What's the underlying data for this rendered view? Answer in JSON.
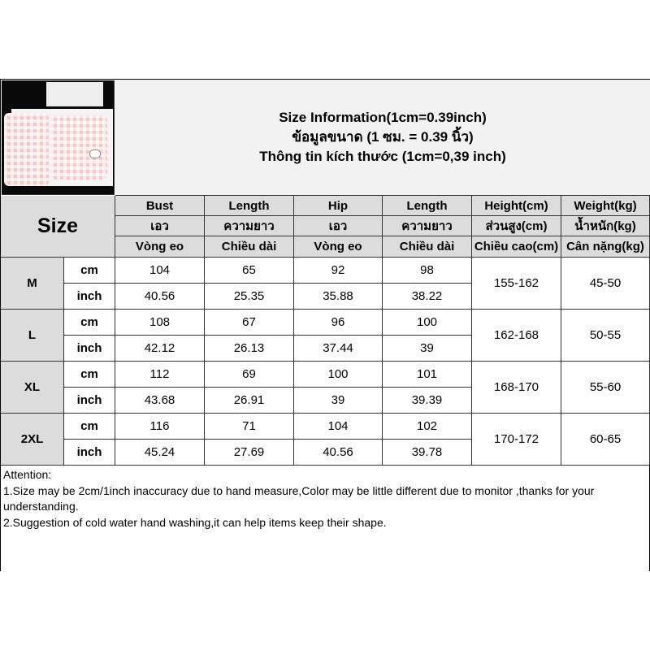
{
  "title": {
    "line1": "Size Information(1cm=0.39inch)",
    "line2": "ข้อมูลขนาด (1 ซม. = 0.39 นิ้ว)",
    "line3": "Thông tin kích thước (1cm=0,39 inch)"
  },
  "size_label": "Size",
  "columns": [
    {
      "en": "Bust",
      "th": "เอว",
      "vi": "Vòng eo"
    },
    {
      "en": "Length",
      "th": "ความยาว",
      "vi": "Chiều dài"
    },
    {
      "en": "Hip",
      "th": "เอว",
      "vi": "Vòng eo"
    },
    {
      "en": "Length",
      "th": "ความยาว",
      "vi": "Chiều dài"
    },
    {
      "en": "Height(cm)",
      "th": "ส่วนสูง(cm)",
      "vi": "Chiều cao(cm)"
    },
    {
      "en": "Weight(kg)",
      "th": "น้ำหนัก(kg)",
      "vi": "Cân nặng(kg)"
    }
  ],
  "rows": [
    {
      "size": "M",
      "cm_label": "cm",
      "inch_label": "inch",
      "cm": [
        "104",
        "65",
        "92",
        "98"
      ],
      "inch": [
        "40.56",
        "25.35",
        "35.88",
        "38.22"
      ],
      "height": "155-162",
      "weight": "45-50"
    },
    {
      "size": "L",
      "cm_label": "cm",
      "inch_label": "inch",
      "cm": [
        "108",
        "67",
        "96",
        "100"
      ],
      "inch": [
        "42.12",
        "26.13",
        "37.44",
        "39"
      ],
      "height": "162-168",
      "weight": "50-55"
    },
    {
      "size": "XL",
      "cm_label": "cm",
      "inch_label": "inch",
      "cm": [
        "112",
        "69",
        "100",
        "101"
      ],
      "inch": [
        "43.68",
        "26.91",
        "39",
        "39.39"
      ],
      "height": "168-170",
      "weight": "55-60"
    },
    {
      "size": "2XL",
      "cm_label": "cm",
      "inch_label": "inch",
      "cm": [
        "116",
        "71",
        "104",
        "102"
      ],
      "inch": [
        "45.24",
        "27.69",
        "40.56",
        "39.78"
      ],
      "height": "170-172",
      "weight": "60-65"
    }
  ],
  "notes": [
    "Attention:",
    "1.Size may be 2cm/1inch inaccuracy due to hand measure,Color may be little different due to monitor ,thanks for your understanding.",
    "2.Suggestion of cold water hand washing,it can help items keep their shape."
  ]
}
